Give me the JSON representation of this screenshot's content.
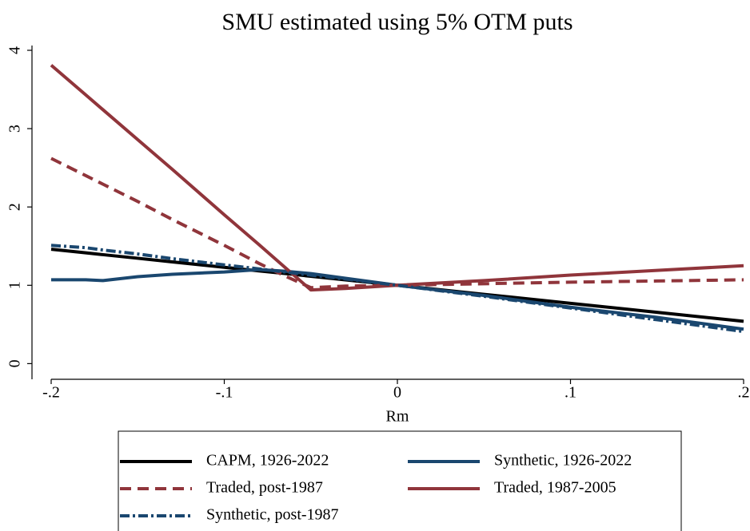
{
  "chart_data": {
    "type": "line",
    "title": "SMU estimated using 5% OTM puts",
    "x_label": "Rm",
    "x": [
      -0.2,
      -0.18,
      -0.17,
      -0.15,
      -0.13,
      -0.1,
      -0.08,
      -0.065,
      -0.05,
      -0.03,
      0,
      0.05,
      0.1,
      0.15,
      0.2
    ],
    "xlim": [
      -0.2,
      0.2
    ],
    "xticks": [
      {
        "value": -0.2,
        "label": "-.2"
      },
      {
        "value": -0.1,
        "label": "-.1"
      },
      0,
      {
        "value": 0.1,
        "label": ".1"
      },
      {
        "value": 0.2,
        "label": ".2"
      }
    ],
    "ylim": [
      -0.2,
      4
    ],
    "yticks": [
      0,
      1,
      2,
      3,
      4
    ],
    "grid": false,
    "legend": "bottom",
    "series": [
      {
        "name": "CAPM, 1926-2022",
        "color": "#000000",
        "dash": "solid",
        "values": [
          1.46,
          1.414,
          1.391,
          1.345,
          1.299,
          1.23,
          1.184,
          1.15,
          1.115,
          1.069,
          1,
          0.885,
          0.77,
          0.655,
          0.54
        ]
      },
      {
        "name": "Synthetic, 1926-2022",
        "color": "#1a476f",
        "dash": "solid",
        "values": [
          1.07,
          1.07,
          1.06,
          1.11,
          1.14,
          1.17,
          1.2,
          1.18,
          1.15,
          1.09,
          1,
          0.87,
          0.72,
          0.59,
          0.44
        ]
      },
      {
        "name": "Traded, post-1987",
        "color": "#90353b",
        "dash": "dash",
        "values": [
          2.62,
          2.4,
          2.29,
          2.07,
          1.84,
          1.51,
          1.28,
          1.12,
          0.97,
          0.99,
          1,
          1.02,
          1.04,
          1.055,
          1.07
        ]
      },
      {
        "name": "Traded, 1987-2005",
        "color": "#90353b",
        "dash": "solid",
        "values": [
          3.81,
          3.43,
          3.24,
          2.86,
          2.48,
          1.9,
          1.52,
          1.23,
          0.94,
          0.96,
          1,
          1.06,
          1.13,
          1.19,
          1.25
        ]
      },
      {
        "name": "Synthetic, post-1987",
        "color": "#1a476f",
        "dash": "dashdot",
        "values": [
          1.51,
          1.48,
          1.45,
          1.4,
          1.34,
          1.26,
          1.21,
          1.17,
          1.13,
          1.08,
          1,
          0.86,
          0.71,
          0.56,
          0.41
        ]
      }
    ]
  }
}
